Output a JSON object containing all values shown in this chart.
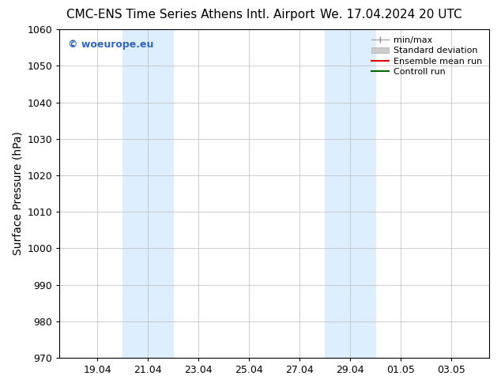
{
  "title": "CMC-ENS Time Series Athens Intl. Airport",
  "title_right": "We. 17.04.2024 20 UTC",
  "ylabel": "Surface Pressure (hPa)",
  "ylim": [
    970,
    1060
  ],
  "yticks": [
    970,
    980,
    990,
    1000,
    1010,
    1020,
    1030,
    1040,
    1050,
    1060
  ],
  "xtick_labels": [
    "19.04",
    "21.04",
    "23.04",
    "25.04",
    "27.04",
    "29.04",
    "01.05",
    "03.05"
  ],
  "background_color": "#ffffff",
  "plot_bg_color": "#ffffff",
  "shaded_bands": [
    {
      "x_start_days": 3.0,
      "x_end_days": 5.0
    },
    {
      "x_start_days": 11.0,
      "x_end_days": 13.0
    }
  ],
  "shaded_color": "#ddeeff",
  "watermark_text": "© woeurope.eu",
  "watermark_color": "#3366bb",
  "legend_entries": [
    {
      "label": "min/max",
      "color": "#aaaaaa",
      "style": "minmax"
    },
    {
      "label": "Standard deviation",
      "color": "#cccccc",
      "style": "fill"
    },
    {
      "label": "Ensemble mean run",
      "color": "#dd0000",
      "style": "line"
    },
    {
      "label": "Controll run",
      "color": "#006600",
      "style": "line"
    }
  ],
  "title_fontsize": 11,
  "axis_fontsize": 10,
  "tick_fontsize": 9,
  "legend_fontsize": 8,
  "watermark_fontsize": 9,
  "xtick_positions": [
    2,
    4,
    6,
    8,
    10,
    12,
    14,
    16
  ],
  "xlim": [
    0.5,
    17.5
  ],
  "figure_width": 6.34,
  "figure_height": 4.9,
  "dpi": 100
}
